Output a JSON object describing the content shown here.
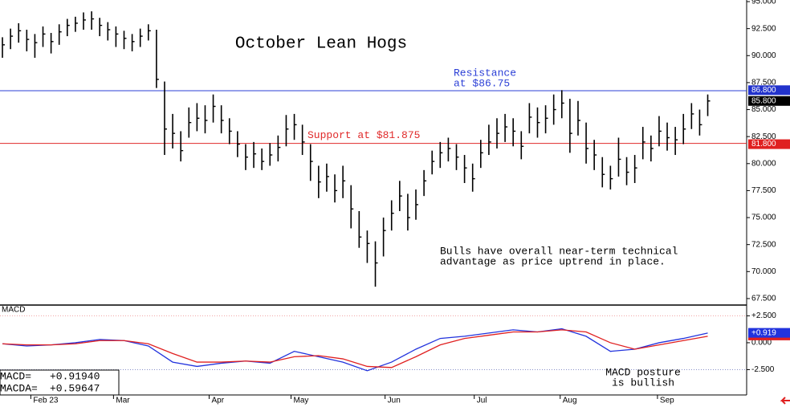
{
  "chart_data": [
    {
      "type": "ohlc",
      "title": "October Lean Hogs",
      "color": "#000000",
      "xlim": [
        -0.3,
        91.8
      ],
      "ylim": [
        66.9,
        95.15
      ],
      "yticks": [
        {
          "value": 67.5,
          "label": "67.500"
        },
        {
          "value": 70,
          "label": "70.000"
        },
        {
          "value": 72.5,
          "label": "72.500"
        },
        {
          "value": 75,
          "label": "75.000"
        },
        {
          "value": 77.5,
          "label": "77.500"
        },
        {
          "value": 80,
          "label": "80.000"
        },
        {
          "value": 82.5,
          "label": "82.500"
        },
        {
          "value": 85,
          "label": "85.000"
        },
        {
          "value": 87.5,
          "label": "87.500"
        },
        {
          "value": 90,
          "label": "90.000"
        },
        {
          "value": 92.5,
          "label": "92.500"
        },
        {
          "value": 95,
          "label": "95.000"
        }
      ],
      "high": [
        91.7,
        92.5,
        93.0,
        92.4,
        92.0,
        92.7,
        92.1,
        92.9,
        93.4,
        93.6,
        94.0,
        94.1,
        93.5,
        93.1,
        92.7,
        92.3,
        92.0,
        92.5,
        92.9,
        92.4,
        87.6,
        84.6,
        83.0,
        85.2,
        85.6,
        85.4,
        86.4,
        85.4,
        84.2,
        83.0,
        81.8,
        82.0,
        81.4,
        81.9,
        82.6,
        84.5,
        84.6,
        83.6,
        81.8,
        79.8,
        80.0,
        79.0,
        79.8,
        78.0,
        75.6,
        73.8,
        72.8,
        75.0,
        76.6,
        78.4,
        77.2,
        77.6,
        79.4,
        81.2,
        82.0,
        82.4,
        81.8,
        80.8,
        80.0,
        82.2,
        83.6,
        84.2,
        84.6,
        84.2,
        83.0,
        85.6,
        85.2,
        85.4,
        86.4,
        86.8,
        86.0,
        85.8,
        83.8,
        82.2,
        80.6,
        79.8,
        82.4,
        80.6,
        80.8,
        83.4,
        82.6,
        84.4,
        83.8,
        83.4,
        84.6,
        85.6,
        85.0,
        86.4
      ],
      "low": [
        89.8,
        90.6,
        91.2,
        90.4,
        89.8,
        90.8,
        90.2,
        91.0,
        91.8,
        92.2,
        92.4,
        92.4,
        91.8,
        91.4,
        90.8,
        90.6,
        90.4,
        90.8,
        91.4,
        87.0,
        80.8,
        81.4,
        80.2,
        82.4,
        83.0,
        82.8,
        83.8,
        82.8,
        81.8,
        80.6,
        79.4,
        79.6,
        79.4,
        79.8,
        80.2,
        81.6,
        82.2,
        80.8,
        78.4,
        76.8,
        77.4,
        76.4,
        76.8,
        74.0,
        72.2,
        70.8,
        68.6,
        71.4,
        73.8,
        75.6,
        73.8,
        74.8,
        77.0,
        79.0,
        79.6,
        80.2,
        79.4,
        78.2,
        77.4,
        79.6,
        80.8,
        81.4,
        82.0,
        81.6,
        80.4,
        82.8,
        82.4,
        82.8,
        83.6,
        84.2,
        81.0,
        82.6,
        80.0,
        79.4,
        77.8,
        77.6,
        78.8,
        78.0,
        78.2,
        80.4,
        80.2,
        81.6,
        81.2,
        80.8,
        81.8,
        83.2,
        82.6,
        84.4
      ],
      "close": [
        91.0,
        91.8,
        92.3,
        91.5,
        91.2,
        92.0,
        91.3,
        92.2,
        92.8,
        93.0,
        93.3,
        93.4,
        92.8,
        92.4,
        92.0,
        91.6,
        91.3,
        91.8,
        92.3,
        87.8,
        83.2,
        82.8,
        81.2,
        83.8,
        84.2,
        84.0,
        85.3,
        84.0,
        83.0,
        81.8,
        80.6,
        80.9,
        80.2,
        80.8,
        81.5,
        83.2,
        83.6,
        82.0,
        80.2,
        78.3,
        78.8,
        77.5,
        78.4,
        75.8,
        73.2,
        72.6,
        70.8,
        73.8,
        75.4,
        77.0,
        75.0,
        76.2,
        78.4,
        80.2,
        81.0,
        81.4,
        80.6,
        79.6,
        78.6,
        81.0,
        82.0,
        82.8,
        83.4,
        83.0,
        81.6,
        84.3,
        83.8,
        84.2,
        85.0,
        85.6,
        82.8,
        84.0,
        81.4,
        80.8,
        79.0,
        78.6,
        80.4,
        79.2,
        79.6,
        82.0,
        81.4,
        83.0,
        82.4,
        82.2,
        83.2,
        84.6,
        83.6,
        85.8
      ],
      "lines": [
        {
          "value": 86.75,
          "color": "#2b3fd6",
          "text": [
            "Resistance",
            "at $86.75"
          ]
        },
        {
          "value": 81.875,
          "color": "#e02a2a",
          "text": [
            "Support at $81.875"
          ]
        }
      ],
      "markers": [
        {
          "value": 86.8,
          "label": "86.800",
          "color": "#2233cc"
        },
        {
          "value": 85.8,
          "label": "85.800",
          "color": "#000000"
        },
        {
          "value": 81.8,
          "label": "81.800",
          "color": "#e02020"
        }
      ],
      "annotation": [
        "Bulls have overall near-term technical",
        "advantage as price uptrend in place."
      ]
    },
    {
      "type": "line",
      "title": "MACD",
      "xlim": [
        -0.3,
        91.8
      ],
      "ylim": [
        -5,
        3.5
      ],
      "xticks": [
        {
          "value": 3.5,
          "label": "Feb 23"
        },
        {
          "value": 13.7,
          "label": "Mar"
        },
        {
          "value": 25.5,
          "label": "Apr"
        },
        {
          "value": 35.6,
          "label": "May"
        },
        {
          "value": 47.2,
          "label": "Jun"
        },
        {
          "value": 58.2,
          "label": "Jul"
        },
        {
          "value": 68.8,
          "label": "Aug"
        },
        {
          "value": 80.8,
          "label": "Sep"
        }
      ],
      "yticks": [
        {
          "value": 2.5,
          "label": "+2.500"
        },
        {
          "value": 0,
          "label": "0.000"
        },
        {
          "value": -2.5,
          "label": "-2.500"
        }
      ],
      "x": [
        0,
        3,
        6,
        9,
        12,
        15,
        18,
        21,
        24,
        27,
        30,
        33,
        36,
        39,
        42,
        45,
        48,
        51,
        54,
        57,
        60,
        63,
        66,
        69,
        72,
        75,
        78,
        81,
        84,
        87
      ],
      "series": [
        {
          "name": "MACD",
          "color": "#2233dd",
          "values": [
            -0.1,
            -0.3,
            -0.2,
            0.0,
            0.3,
            0.2,
            -0.3,
            -1.8,
            -2.2,
            -1.9,
            -1.7,
            -1.9,
            -0.8,
            -1.3,
            -1.8,
            -2.6,
            -1.8,
            -0.6,
            0.4,
            0.6,
            0.9,
            1.2,
            1.0,
            1.3,
            0.6,
            -0.8,
            -0.6,
            0.0,
            0.4,
            0.9
          ]
        },
        {
          "name": "MACDA",
          "color": "#e02020",
          "values": [
            -0.1,
            -0.2,
            -0.2,
            -0.1,
            0.2,
            0.2,
            -0.1,
            -1.0,
            -1.8,
            -1.8,
            -1.7,
            -1.8,
            -1.3,
            -1.2,
            -1.5,
            -2.2,
            -2.3,
            -1.3,
            -0.2,
            0.4,
            0.7,
            1.0,
            1.0,
            1.2,
            1.0,
            0.0,
            -0.6,
            -0.2,
            0.2,
            0.6
          ]
        }
      ],
      "markers": [
        {
          "value": 0.919,
          "label": "+0.919",
          "color": "#2233dd"
        }
      ],
      "readout": [
        {
          "label": "MACD=",
          "value": "+0.91940"
        },
        {
          "label": "MACDA=",
          "value": "+0.59647"
        }
      ],
      "annotation": [
        "MACD posture",
        "is bullish"
      ]
    }
  ]
}
